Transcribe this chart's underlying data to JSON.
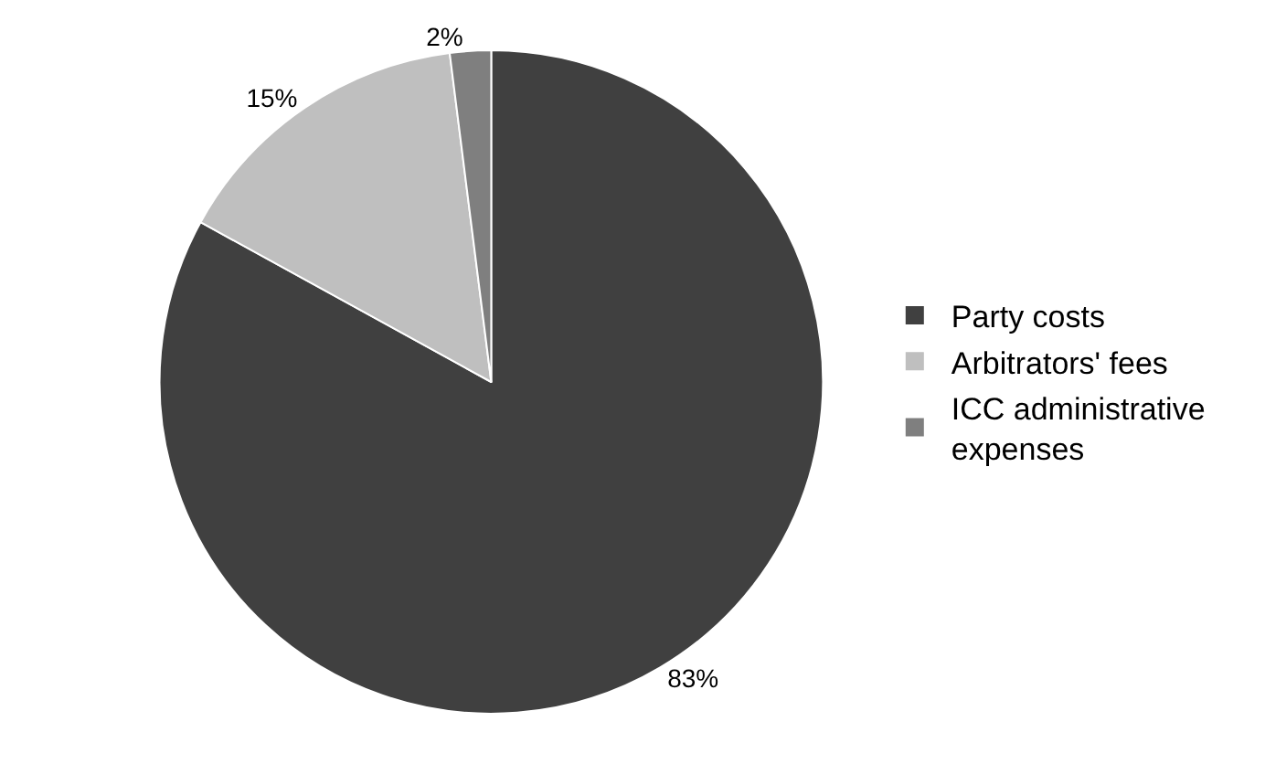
{
  "chart_data": {
    "type": "pie",
    "categories": [
      "Party costs",
      "Arbitrators' fees",
      "ICC administrative expenses"
    ],
    "values": [
      83,
      15,
      2
    ],
    "value_labels": [
      "83%",
      "15%",
      "2%"
    ],
    "colors": [
      "#404040",
      "#bfbfbf",
      "#7f7f7f"
    ],
    "legend": "right"
  }
}
